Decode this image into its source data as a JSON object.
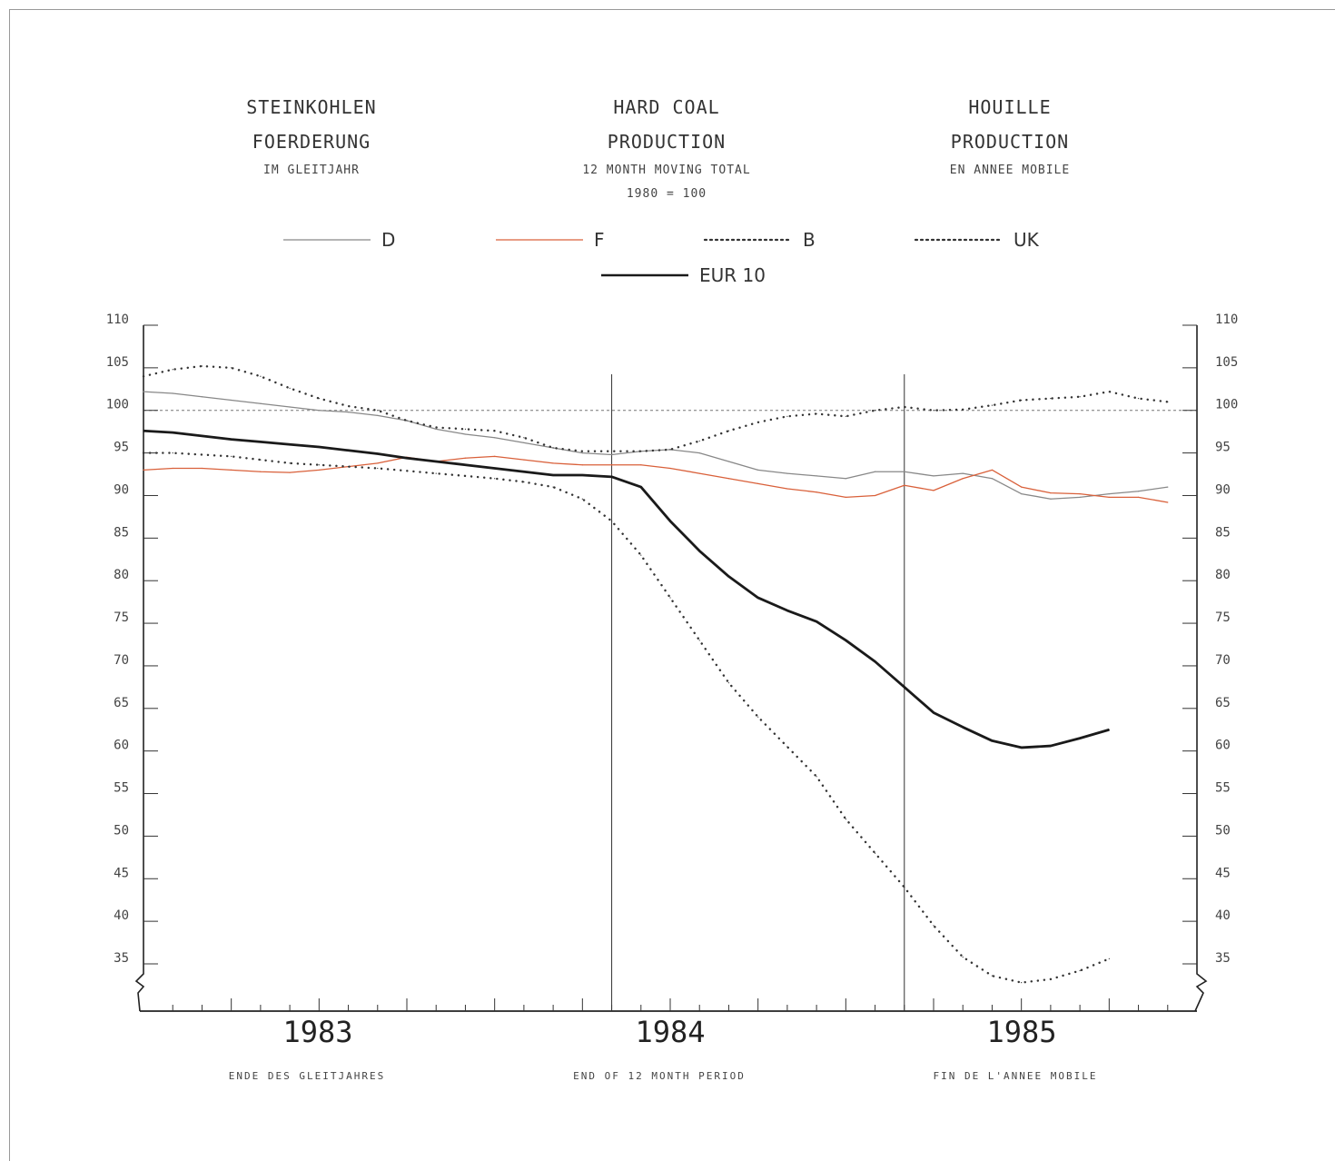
{
  "headers": [
    {
      "line1": "STEINKOHLEN",
      "line2": "FOERDERUNG",
      "line3": "IM GLEITJAHR",
      "line4": ""
    },
    {
      "line1": "HARD COAL",
      "line2": "PRODUCTION",
      "line3": "12 MONTH MOVING TOTAL",
      "line4": "1980 = 100"
    },
    {
      "line1": "HOUILLE",
      "line2": "PRODUCTION",
      "line3": "EN ANNEE MOBILE",
      "line4": ""
    }
  ],
  "footer": [
    "ENDE DES GLEITJAHRES",
    "END OF 12 MONTH PERIOD",
    "FIN DE L'ANNEE MOBILE"
  ],
  "chart_data": {
    "type": "line",
    "ylim": [
      30,
      110
    ],
    "yticks": [
      35,
      40,
      45,
      50,
      55,
      60,
      65,
      70,
      75,
      80,
      85,
      90,
      95,
      100,
      105,
      110
    ],
    "xlim": [
      1982.0,
      1985.6
    ],
    "year_labels": [
      "1983",
      "1984",
      "1985"
    ],
    "reference_line": 100,
    "year_separators": [
      1983.6,
      1984.6
    ],
    "series": [
      {
        "name": "D",
        "color": "#888888",
        "style": "thin",
        "x": [
          1982.0,
          1982.1,
          1982.2,
          1982.3,
          1982.4,
          1982.5,
          1982.6,
          1982.7,
          1982.8,
          1982.9,
          1983.0,
          1983.1,
          1983.2,
          1983.3,
          1983.4,
          1983.5,
          1983.6,
          1983.7,
          1983.8,
          1983.9,
          1984.0,
          1984.1,
          1984.2,
          1984.3,
          1984.4,
          1984.5,
          1984.6,
          1984.7,
          1984.8,
          1984.9,
          1985.0,
          1985.1,
          1985.2,
          1985.3,
          1985.4,
          1985.5
        ],
        "values": [
          102.2,
          102.0,
          101.6,
          101.2,
          100.8,
          100.4,
          100.0,
          99.8,
          99.4,
          98.8,
          97.8,
          97.2,
          96.8,
          96.2,
          95.6,
          95.0,
          94.8,
          95.2,
          95.4,
          95.0,
          94.0,
          93.0,
          92.6,
          92.3,
          92.0,
          92.8,
          92.8,
          92.3,
          92.6,
          92.0,
          90.2,
          89.6,
          89.8,
          90.2,
          90.5,
          91.0
        ]
      },
      {
        "name": "F",
        "color": "#d9603a",
        "style": "thin",
        "x": [
          1982.0,
          1982.1,
          1982.2,
          1982.3,
          1982.4,
          1982.5,
          1982.6,
          1982.7,
          1982.8,
          1982.9,
          1983.0,
          1983.1,
          1983.2,
          1983.3,
          1983.4,
          1983.5,
          1983.6,
          1983.7,
          1983.8,
          1983.9,
          1984.0,
          1984.1,
          1984.2,
          1984.3,
          1984.4,
          1984.5,
          1984.6,
          1984.7,
          1984.8,
          1984.9,
          1985.0,
          1985.1,
          1985.2,
          1985.3,
          1985.4,
          1985.5
        ],
        "values": [
          93.0,
          93.2,
          93.2,
          93.0,
          92.8,
          92.7,
          93.0,
          93.4,
          93.8,
          94.5,
          94.0,
          94.4,
          94.6,
          94.2,
          93.8,
          93.6,
          93.6,
          93.6,
          93.2,
          92.6,
          92.0,
          91.4,
          90.8,
          90.4,
          89.8,
          90.0,
          91.2,
          90.6,
          92.0,
          93.0,
          91.0,
          90.3,
          90.2,
          89.8,
          89.8,
          89.2
        ]
      },
      {
        "name": "B",
        "color": "#333333",
        "style": "dotted",
        "x": [
          1982.0,
          1982.1,
          1982.2,
          1982.3,
          1982.4,
          1982.5,
          1982.6,
          1982.7,
          1982.8,
          1982.9,
          1983.0,
          1983.1,
          1983.2,
          1983.3,
          1983.4,
          1983.5,
          1983.6,
          1983.7,
          1983.8,
          1983.9,
          1984.0,
          1984.1,
          1984.2,
          1984.3,
          1984.4,
          1984.5,
          1984.6,
          1984.7,
          1984.8,
          1984.9,
          1985.0,
          1985.1,
          1985.2,
          1985.3,
          1985.4,
          1985.5
        ],
        "values": [
          104.0,
          104.8,
          105.2,
          105.0,
          104.0,
          102.6,
          101.4,
          100.5,
          100.0,
          98.8,
          98.0,
          97.8,
          97.6,
          96.8,
          95.6,
          95.2,
          95.2,
          95.2,
          95.4,
          96.4,
          97.6,
          98.6,
          99.3,
          99.6,
          99.3,
          100.0,
          100.4,
          100.0,
          100.1,
          100.6,
          101.2,
          101.4,
          101.6,
          102.2,
          101.4,
          101.0
        ]
      },
      {
        "name": "UK",
        "color": "#333333",
        "style": "dotted",
        "x": [
          1982.0,
          1982.1,
          1982.2,
          1982.3,
          1982.4,
          1982.5,
          1982.6,
          1982.7,
          1982.8,
          1982.9,
          1983.0,
          1983.1,
          1983.2,
          1983.3,
          1983.4,
          1983.5,
          1983.6,
          1983.7,
          1983.8,
          1983.9,
          1984.0,
          1984.1,
          1984.2,
          1984.3,
          1984.4,
          1984.5,
          1984.6,
          1984.7,
          1984.8,
          1984.9,
          1985.0,
          1985.1,
          1985.2,
          1985.3
        ],
        "values": [
          95.0,
          95.0,
          94.8,
          94.6,
          94.2,
          93.8,
          93.6,
          93.4,
          93.2,
          92.9,
          92.6,
          92.3,
          92.0,
          91.6,
          91.0,
          89.6,
          87.0,
          83.0,
          78.0,
          73.0,
          68.0,
          64.0,
          60.5,
          57.0,
          52.0,
          48.0,
          44.0,
          39.5,
          35.8,
          33.6,
          32.8,
          33.2,
          34.2,
          35.6
        ]
      },
      {
        "name": "EUR 10",
        "color": "#1a1a1a",
        "style": "bold",
        "x": [
          1982.0,
          1982.1,
          1982.2,
          1982.3,
          1982.4,
          1982.5,
          1982.6,
          1982.7,
          1982.8,
          1982.9,
          1983.0,
          1983.1,
          1983.2,
          1983.3,
          1983.4,
          1983.5,
          1983.6,
          1983.7,
          1983.8,
          1983.9,
          1984.0,
          1984.1,
          1984.2,
          1984.3,
          1984.4,
          1984.5,
          1984.6,
          1984.7,
          1984.8,
          1984.9,
          1985.0,
          1985.1,
          1985.2,
          1985.3
        ],
        "values": [
          97.6,
          97.4,
          97.0,
          96.6,
          96.3,
          96.0,
          95.7,
          95.3,
          94.9,
          94.4,
          94.0,
          93.6,
          93.2,
          92.8,
          92.4,
          92.4,
          92.2,
          91.0,
          87.0,
          83.5,
          80.5,
          78.0,
          76.5,
          75.2,
          73.0,
          70.5,
          67.5,
          64.5,
          62.8,
          61.2,
          60.4,
          60.6,
          61.5,
          62.5
        ]
      }
    ]
  }
}
